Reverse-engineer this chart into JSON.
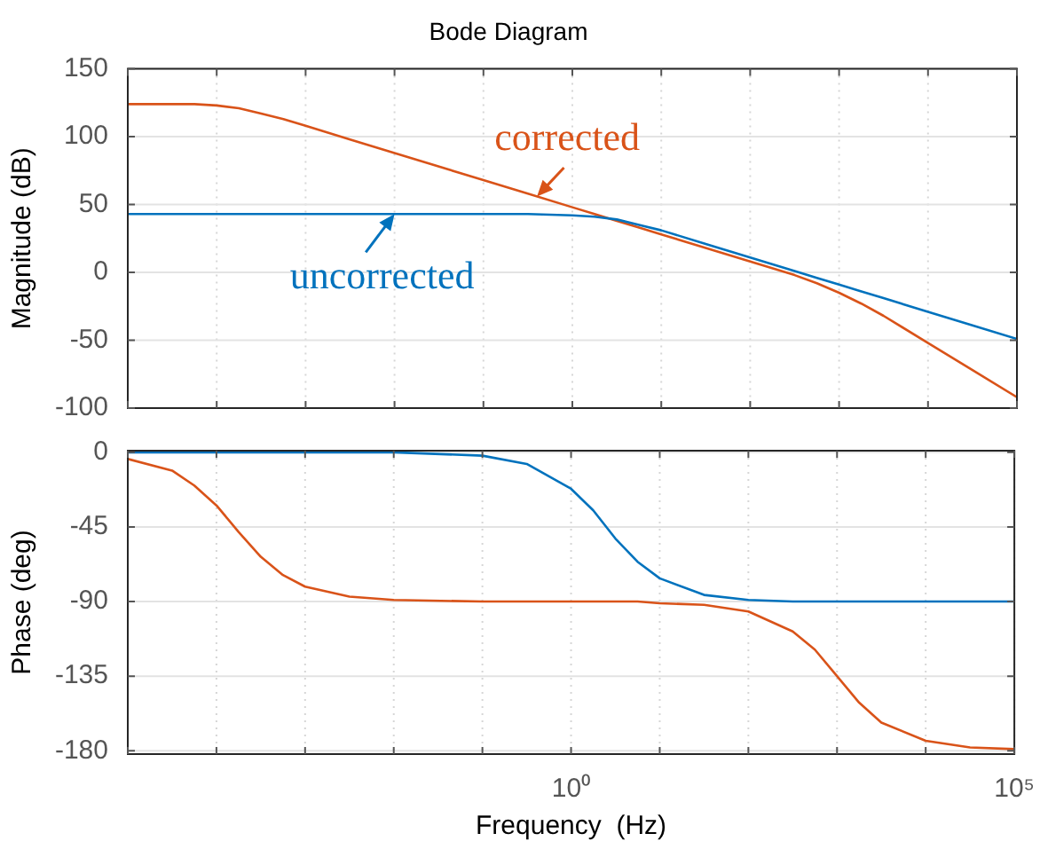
{
  "chart_data": [
    {
      "type": "line",
      "title": "Bode Diagram",
      "ylabel": "Magnitude (dB)",
      "x": [
        1e-05,
        3.162e-05,
        5.623e-05,
        0.0001,
        0.0001778,
        0.0003162,
        0.0005623,
        0.001,
        0.003162,
        0.01,
        0.1,
        0.3162,
        1,
        1.778,
        3.162,
        5.623,
        10,
        31.62,
        100,
        316.2,
        562.3,
        1000,
        1778,
        3162,
        10000,
        31620,
        100000
      ],
      "series": [
        {
          "color": "#0072bd",
          "values": [
            43,
            43,
            43,
            43,
            43,
            43,
            43,
            43,
            43,
            43,
            43,
            43,
            42,
            41,
            39,
            35,
            31,
            21,
            11,
            1,
            -4,
            -9,
            -14,
            -19,
            -29,
            -39,
            -49
          ]
        },
        {
          "color": "#d95319",
          "values": [
            124,
            124,
            124,
            123,
            121,
            117,
            113,
            108,
            98,
            88,
            68,
            58,
            48,
            43,
            38,
            33,
            28,
            18,
            8,
            -2,
            -8,
            -15,
            -23,
            -32,
            -52,
            -72,
            -92
          ]
        }
      ],
      "annotations": [
        {
          "text": "uncorrected",
          "x": 0.01,
          "y": 43
        },
        {
          "text": "corrected",
          "x": 0.4,
          "y": 56
        }
      ],
      "log": "x",
      "xlim": [
        1e-05,
        100000
      ],
      "xticks": [
        {
          "value": 1e-05,
          "label": null
        },
        {
          "value": 0.0001,
          "label": null
        },
        {
          "value": 0.001,
          "label": null
        },
        {
          "value": 0.01,
          "label": null
        },
        {
          "value": 0.1,
          "label": null
        },
        {
          "value": 1,
          "label": null
        },
        {
          "value": 10,
          "label": null
        },
        {
          "value": 100,
          "label": null
        },
        {
          "value": 1000,
          "label": null
        },
        {
          "value": 10000,
          "label": null
        },
        {
          "value": 100000,
          "label": null
        }
      ],
      "ylim": [
        -100,
        150
      ],
      "yticks": [
        -100,
        -50,
        0,
        50,
        100,
        150
      ],
      "grid": true,
      "tick_labels": "y",
      "marker": "none",
      "line_style": "solid",
      "legend": false
    },
    {
      "type": "line",
      "xlabel": "Frequency  (Hz)",
      "ylabel": "Phase (deg)",
      "x": [
        1e-05,
        3.162e-05,
        5.623e-05,
        0.0001,
        0.0001778,
        0.0003162,
        0.0005623,
        0.001,
        0.003162,
        0.01,
        0.1,
        0.3162,
        1,
        1.778,
        3.162,
        5.623,
        10,
        31.62,
        100,
        316.2,
        562.3,
        1000,
        1778,
        3162,
        10000,
        31620,
        100000
      ],
      "series": [
        {
          "color": "#0072bd",
          "values": [
            0,
            0,
            0,
            0,
            0,
            0,
            0,
            0,
            0,
            0,
            -2,
            -7,
            -22,
            -35,
            -52,
            -66,
            -76,
            -86,
            -89,
            -90,
            -90,
            -90,
            -90,
            -90,
            -90,
            -90,
            -90
          ]
        },
        {
          "color": "#d95319",
          "values": [
            -4,
            -11,
            -20,
            -32,
            -48,
            -63,
            -74,
            -81,
            -87,
            -89,
            -90,
            -90,
            -90,
            -90,
            -90,
            -90,
            -91,
            -92,
            -96,
            -108,
            -119,
            -135,
            -151,
            -163,
            -174,
            -178,
            -179
          ]
        }
      ],
      "log": "x",
      "xlim": [
        1e-05,
        100000
      ],
      "xticks": [
        {
          "value": 1e-05,
          "label": null
        },
        {
          "value": 0.0001,
          "label": null
        },
        {
          "value": 0.001,
          "label": null
        },
        {
          "value": 0.01,
          "label": null
        },
        {
          "value": 0.1,
          "label": null
        },
        {
          "value": 1,
          "label": "10⁰"
        },
        {
          "value": 10,
          "label": null
        },
        {
          "value": 100,
          "label": null
        },
        {
          "value": 1000,
          "label": null
        },
        {
          "value": 10000,
          "label": null
        },
        {
          "value": 100000,
          "label": "10⁵"
        }
      ],
      "ylim": [
        -182,
        1
      ],
      "yticks": [
        -180,
        -135,
        -90,
        -45,
        0
      ],
      "grid": true,
      "marker": "none",
      "line_style": "solid",
      "legend": false
    }
  ]
}
